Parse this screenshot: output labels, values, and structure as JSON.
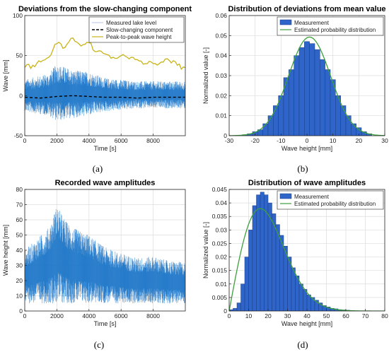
{
  "panel_labels": [
    "(a)",
    "(b)",
    "(c)",
    "(d)"
  ],
  "chart_data": [
    {
      "type": "line",
      "title": "Deviations from the slow-changing component",
      "xlabel": "Time [s]",
      "ylabel": "Wave [mm]",
      "xlim": [
        0,
        10000
      ],
      "ylim": [
        -50,
        100
      ],
      "xticks": [
        0,
        2000,
        4000,
        6000,
        8000
      ],
      "yticks": [
        -50,
        0,
        50,
        100
      ],
      "grid": true,
      "legend_position": "top-right",
      "colors": {
        "measured": "#1f77c8",
        "slow": "#000000",
        "peak": "#c8b416"
      },
      "series": [
        {
          "name": "Measured lake level",
          "kind": "signal",
          "x": [
            0,
            10000
          ],
          "upper_envelope": [
            [
              0,
              20
            ],
            [
              1500,
              28
            ],
            [
              2000,
              40
            ],
            [
              3000,
              32
            ],
            [
              4000,
              30
            ],
            [
              5000,
              22
            ],
            [
              6000,
              20
            ],
            [
              7000,
              18
            ],
            [
              8000,
              18
            ],
            [
              10000,
              18
            ]
          ],
          "lower_envelope": [
            [
              0,
              -20
            ],
            [
              1500,
              -25
            ],
            [
              2000,
              -32
            ],
            [
              3000,
              -28
            ],
            [
              4000,
              -25
            ],
            [
              5000,
              -20
            ],
            [
              6000,
              -18
            ],
            [
              7000,
              -16
            ],
            [
              8000,
              -16
            ],
            [
              10000,
              -16
            ]
          ]
        },
        {
          "name": "Slow-changing component",
          "x": [
            0,
            1000,
            2000,
            3000,
            4000,
            5000,
            6000,
            7000,
            8000,
            9000,
            10000
          ],
          "y": [
            -2,
            -3,
            -1,
            0,
            -1,
            -2,
            -2,
            -3,
            -2,
            -2,
            -2
          ]
        },
        {
          "name": "Peak-to-peak wave height",
          "x": [
            0,
            500,
            1000,
            1500,
            2000,
            2500,
            3000,
            3500,
            4000,
            4500,
            5000,
            5500,
            6000,
            6500,
            7000,
            7500,
            8000,
            8500,
            9000,
            9500,
            10000
          ],
          "y": [
            35,
            38,
            42,
            48,
            65,
            60,
            72,
            62,
            66,
            55,
            52,
            48,
            50,
            46,
            45,
            40,
            40,
            42,
            44,
            38,
            35
          ]
        }
      ]
    },
    {
      "type": "bar",
      "title": "Distribution of deviations from mean value",
      "xlabel": "Wave height [mm]",
      "ylabel": "Normalized value [-]",
      "xlim": [
        -30,
        30
      ],
      "ylim": [
        0,
        0.06
      ],
      "xticks": [
        -30,
        -20,
        -10,
        0,
        10,
        20,
        30
      ],
      "yticks": [
        0,
        0.01,
        0.02,
        0.03,
        0.04,
        0.05,
        0.06
      ],
      "grid": true,
      "legend_position": "top-right",
      "colors": {
        "bars": "#2f64c8",
        "curve": "#3ca03c"
      },
      "bin_width": 2,
      "bins_start": [
        -25,
        -23,
        -21,
        -19,
        -17,
        -15,
        -13,
        -11,
        -9,
        -7,
        -5,
        -3,
        -1,
        1,
        3,
        5,
        7,
        9,
        11,
        13,
        15,
        17,
        19,
        21,
        23
      ],
      "values": [
        0.0005,
        0.001,
        0.002,
        0.003,
        0.006,
        0.01,
        0.015,
        0.02,
        0.029,
        0.033,
        0.04,
        0.044,
        0.047,
        0.046,
        0.043,
        0.038,
        0.033,
        0.028,
        0.02,
        0.015,
        0.01,
        0.006,
        0.004,
        0.002,
        0.001
      ],
      "series": [
        {
          "name": "Measurement",
          "kind": "histogram"
        },
        {
          "name": "Estimated probability distribution",
          "kind": "normal",
          "mean": 1,
          "sigma": 8.1
        }
      ]
    },
    {
      "type": "line",
      "title": "Recorded wave amplitudes",
      "xlabel": "Time [s]",
      "ylabel": "Wave height [mm]",
      "xlim": [
        0,
        10000
      ],
      "ylim": [
        0,
        80
      ],
      "xticks": [
        0,
        2000,
        4000,
        6000,
        8000
      ],
      "yticks": [
        0,
        10,
        20,
        30,
        40,
        50,
        60,
        70,
        80
      ],
      "grid": true,
      "colors": {
        "signal": "#1f77c8"
      },
      "series": [
        {
          "kind": "signal",
          "upper_envelope": [
            [
              0,
              40
            ],
            [
              1500,
              55
            ],
            [
              2000,
              70
            ],
            [
              2500,
              60
            ],
            [
              3000,
              55
            ],
            [
              4000,
              50
            ],
            [
              5000,
              42
            ],
            [
              6000,
              38
            ],
            [
              7000,
              35
            ],
            [
              8000,
              36
            ],
            [
              9000,
              33
            ],
            [
              10000,
              32
            ]
          ],
          "lower_envelope": [
            [
              0,
              5
            ],
            [
              10000,
              5
            ]
          ]
        }
      ]
    },
    {
      "type": "bar",
      "title": "Distribution of wave amplitudes",
      "xlabel": "Wave height [mm]",
      "ylabel": "Normalized value [-]",
      "xlim": [
        0,
        80
      ],
      "ylim": [
        0,
        0.045
      ],
      "xticks": [
        0,
        10,
        20,
        30,
        40,
        50,
        60,
        70,
        80
      ],
      "yticks": [
        0,
        0.005,
        0.01,
        0.015,
        0.02,
        0.025,
        0.03,
        0.035,
        0.04,
        0.045
      ],
      "grid": true,
      "legend_position": "top-right",
      "colors": {
        "bars": "#2f64c8",
        "curve": "#3ca03c"
      },
      "bin_width": 2,
      "bins_start": [
        0,
        2,
        4,
        6,
        8,
        10,
        12,
        14,
        16,
        18,
        20,
        22,
        24,
        26,
        28,
        30,
        32,
        34,
        36,
        38,
        40,
        42,
        44,
        46,
        48,
        50,
        52,
        54,
        56,
        58,
        60,
        62
      ],
      "values": [
        0.0005,
        0.001,
        0.003,
        0.01,
        0.02,
        0.03,
        0.039,
        0.043,
        0.044,
        0.043,
        0.04,
        0.036,
        0.032,
        0.028,
        0.024,
        0.02,
        0.016,
        0.013,
        0.01,
        0.008,
        0.006,
        0.005,
        0.004,
        0.003,
        0.002,
        0.0015,
        0.001,
        0.0008,
        0.0005,
        0.0004,
        0.0003,
        0.0002
      ],
      "series": [
        {
          "name": "Measurement",
          "kind": "histogram"
        },
        {
          "name": "Estimated probability distribution",
          "kind": "rayleigh",
          "sigma": 16
        }
      ]
    }
  ]
}
